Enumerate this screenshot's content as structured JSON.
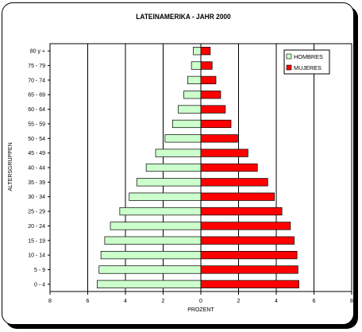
{
  "chart_data": {
    "type": "bar",
    "title": "LATEINAMERIKA - JAHR 2000",
    "xlabel": "PROZENT",
    "ylabel": "ALTERSGRUPPEN",
    "categories": [
      "0 - 4",
      "5 - 9",
      "10 - 14",
      "15 - 19",
      "20 - 24",
      "25 - 29",
      "30 - 34",
      "35 - 39",
      "40 - 44",
      "45 - 49",
      "50 - 54",
      "55 - 59",
      "60 - 64",
      "65 - 69",
      "70 - 74",
      "75 - 79",
      "80 y +"
    ],
    "series": [
      {
        "name": "HOMBRES",
        "color": "#ccffcc",
        "values": [
          5.5,
          5.4,
          5.3,
          5.1,
          4.8,
          4.3,
          3.8,
          3.4,
          2.9,
          2.4,
          1.9,
          1.5,
          1.2,
          0.9,
          0.7,
          0.5,
          0.4
        ]
      },
      {
        "name": "MUJERES",
        "color": "#ff0000",
        "values": [
          5.2,
          5.15,
          5.1,
          4.95,
          4.75,
          4.3,
          3.9,
          3.55,
          3.0,
          2.5,
          1.95,
          1.6,
          1.3,
          1.05,
          0.8,
          0.6,
          0.5
        ]
      }
    ],
    "xticks": [
      "8",
      "6",
      "4",
      "2",
      "0",
      "2",
      "4",
      "6",
      "8"
    ],
    "xlim": [
      -8,
      8
    ],
    "grid": true,
    "legend": "top-right"
  }
}
